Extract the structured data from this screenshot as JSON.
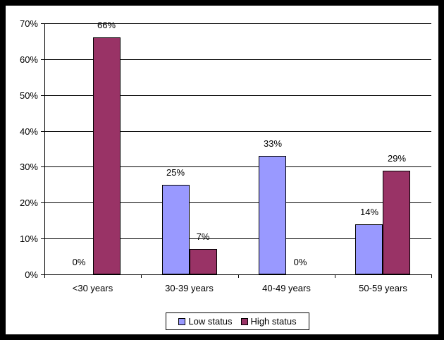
{
  "chart_data": {
    "type": "bar",
    "title": "",
    "xlabel": "",
    "ylabel": "",
    "categories": [
      "<30 years",
      "30-39 years",
      "40-49 years",
      "50-59 years"
    ],
    "series": [
      {
        "name": "Low status",
        "color": "#9999FF",
        "values": [
          0,
          25,
          33,
          14
        ],
        "labels": [
          "0%",
          "25%",
          "33%",
          "14%"
        ]
      },
      {
        "name": "High status",
        "color": "#993366",
        "values": [
          66,
          7,
          0,
          29
        ],
        "labels": [
          "66%",
          "7%",
          "0%",
          "29%"
        ]
      }
    ],
    "ylim": [
      0,
      70
    ],
    "ytick_values": [
      0,
      10,
      20,
      30,
      40,
      50,
      60,
      70
    ],
    "ytick_labels": [
      "0%",
      "10%",
      "20%",
      "30%",
      "40%",
      "50%",
      "60%",
      "70%"
    ],
    "grid": true,
    "legend_position": "bottom",
    "axis_color": "#000000",
    "background_color": "#FFFFFF",
    "frame_color": "#000000"
  }
}
